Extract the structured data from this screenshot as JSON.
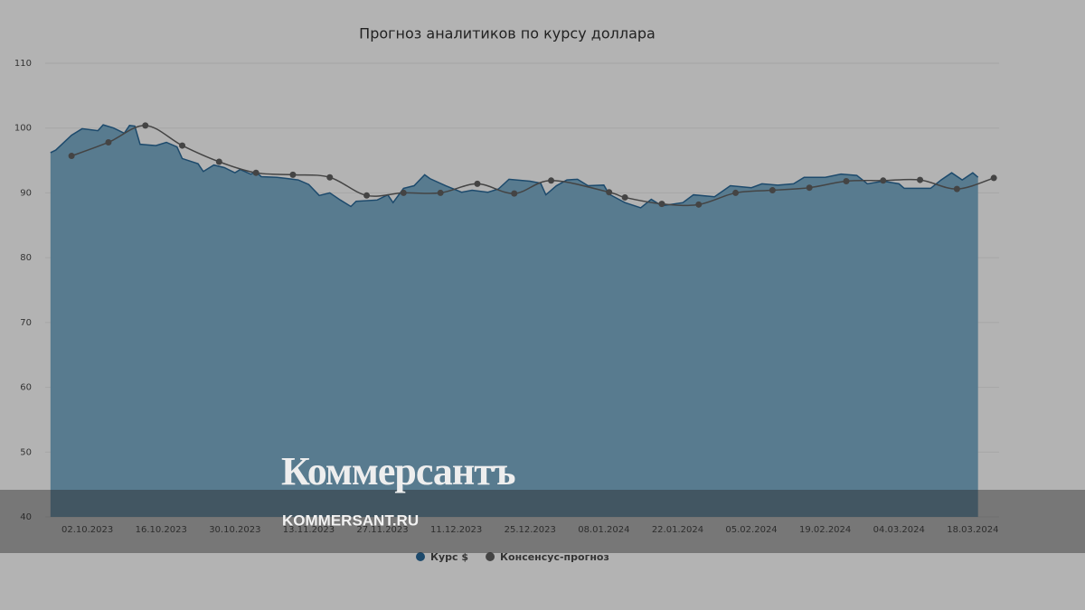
{
  "chart_data": {
    "type": "area",
    "title": "Прогноз аналитиков по курсу доллара",
    "ylim": [
      40,
      110
    ],
    "yticks": [
      40,
      50,
      60,
      70,
      80,
      90,
      100,
      110
    ],
    "xlim": [
      "24.09.2023",
      "23.03.2024"
    ],
    "xticks": [
      "02.10.2023",
      "16.10.2023",
      "30.10.2023",
      "13.11.2023",
      "27.11.2023",
      "11.12.2023",
      "25.12.2023",
      "08.01.2024",
      "22.01.2024",
      "05.02.2024",
      "19.02.2024",
      "04.03.2024",
      "18.03.2024"
    ],
    "grid": true,
    "legend": "bottom",
    "series": [
      {
        "name": "Курс $",
        "type": "area",
        "color": "#1d4a6c",
        "fill": "#587b8f",
        "x": [
          "25.09.2023",
          "26.09.2023",
          "29.09.2023",
          "01.10.2023",
          "04.10.2023",
          "05.10.2023",
          "07.10.2023",
          "09.10.2023",
          "10.10.2023",
          "11.10.2023",
          "12.10.2023",
          "15.10.2023",
          "17.10.2023",
          "19.10.2023",
          "20.10.2023",
          "23.10.2023",
          "24.10.2023",
          "26.10.2023",
          "28.10.2023",
          "30.10.2023",
          "31.10.2023",
          "02.11.2023",
          "03.11.2023",
          "04.11.2023",
          "07.11.2023",
          "09.11.2023",
          "11.11.2023",
          "13.11.2023",
          "15.11.2023",
          "17.11.2023",
          "19.11.2023",
          "21.11.2023",
          "22.11.2023",
          "26.11.2023",
          "28.11.2023",
          "29.11.2023",
          "01.12.2023",
          "03.12.2023",
          "05.12.2023",
          "06.12.2023",
          "09.12.2023",
          "12.12.2023",
          "14.12.2023",
          "17.12.2023",
          "19.12.2023",
          "21.12.2023",
          "25.12.2023",
          "27.12.2023",
          "28.12.2023",
          "30.12.2023",
          "01.01.2024",
          "03.01.2024",
          "05.01.2024",
          "08.01.2024",
          "09.01.2024",
          "12.01.2024",
          "15.01.2024",
          "17.01.2024",
          "19.01.2024",
          "23.01.2024",
          "25.01.2024",
          "29.01.2024",
          "01.02.2024",
          "05.02.2024",
          "07.02.2024",
          "10.02.2024",
          "13.02.2024",
          "15.02.2024",
          "19.02.2024",
          "22.02.2024",
          "25.02.2024",
          "27.02.2024",
          "01.03.2024",
          "04.03.2024",
          "05.03.2024",
          "10.03.2024",
          "12.03.2024",
          "14.03.2024",
          "16.03.2024",
          "18.03.2024",
          "19.03.2024"
        ],
        "values": [
          96.2,
          96.6,
          98.9,
          99.9,
          99.6,
          100.5,
          100.0,
          99.2,
          100.4,
          100.3,
          97.5,
          97.3,
          97.8,
          97.1,
          95.3,
          94.5,
          93.3,
          94.3,
          93.9,
          93.1,
          93.6,
          92.9,
          93.2,
          92.5,
          92.4,
          92.2,
          92.0,
          91.3,
          89.6,
          90.0,
          88.9,
          87.9,
          88.7,
          88.9,
          89.7,
          88.5,
          90.7,
          91.1,
          92.8,
          92.2,
          91.1,
          90.1,
          90.4,
          90.1,
          90.6,
          92.1,
          91.8,
          91.5,
          89.7,
          91.1,
          92.0,
          92.1,
          91.1,
          91.2,
          89.8,
          88.5,
          87.7,
          89.0,
          88.0,
          88.5,
          89.7,
          89.4,
          91.1,
          90.8,
          91.4,
          91.2,
          91.4,
          92.4,
          92.4,
          92.9,
          92.7,
          91.4,
          91.8,
          91.4,
          90.7,
          90.7,
          92.0,
          93.1,
          92.0,
          93.1,
          92.4
        ]
      },
      {
        "name": "Консенсус-прогноз",
        "type": "line",
        "color": "#444444",
        "x": [
          "29.09.2023",
          "06.10.2023",
          "13.10.2023",
          "20.10.2023",
          "27.10.2023",
          "03.11.2023",
          "10.11.2023",
          "17.11.2023",
          "24.11.2023",
          "01.12.2023",
          "08.12.2023",
          "15.12.2023",
          "22.12.2023",
          "29.12.2023",
          "09.01.2024",
          "12.01.2024",
          "19.01.2024",
          "26.01.2024",
          "02.02.2024",
          "09.02.2024",
          "16.02.2024",
          "23.02.2024",
          "01.03.2024",
          "08.03.2024",
          "15.03.2024",
          "22.03.2024"
        ],
        "values": [
          95.7,
          97.8,
          100.4,
          97.3,
          94.8,
          93.1,
          92.8,
          92.4,
          89.6,
          90.0,
          90.0,
          91.4,
          89.9,
          91.9,
          90.1,
          89.3,
          88.3,
          88.2,
          90.0,
          90.4,
          90.8,
          91.8,
          91.9,
          92.0,
          90.6,
          92.3
        ]
      }
    ]
  },
  "watermark": {
    "logo": "Коммерсантъ",
    "site": "KOMMERSANT.RU"
  }
}
